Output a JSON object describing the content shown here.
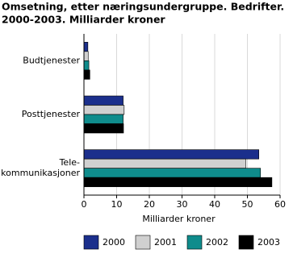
{
  "chart_data": {
    "type": "barh",
    "title": [
      "Omsetning, etter næringsundergruppe. Bedrifter.",
      "2000-2003. Milliarder kroner"
    ],
    "categories": [
      "Budtjenester",
      "Posttjenester",
      "Tele-\nkommunikasjoner"
    ],
    "series": [
      {
        "name": "2000",
        "color": "#1b2f8c",
        "values": [
          1.2,
          12.0,
          53.5
        ]
      },
      {
        "name": "2001",
        "color": "#d0d0d0",
        "values": [
          1.3,
          12.3,
          49.5
        ]
      },
      {
        "name": "2002",
        "color": "#0f8c8c",
        "values": [
          1.5,
          12.0,
          54.0
        ]
      },
      {
        "name": "2003",
        "color": "#000000",
        "values": [
          1.8,
          12.1,
          57.5
        ]
      }
    ],
    "xlabel": "Milliarder kroner",
    "xlim": [
      0,
      60
    ],
    "xticks": [
      0,
      10,
      20,
      30,
      40,
      50,
      60
    ],
    "grid": true
  }
}
